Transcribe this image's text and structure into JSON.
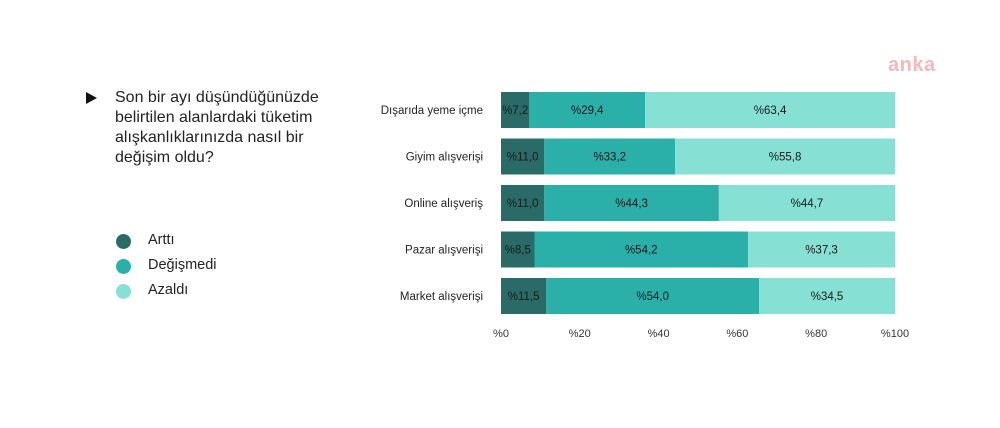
{
  "logo": "anka",
  "question": "Son bir ayı düşündüğünüzde belirtilen alanlardaki tüketim alışkanlıklarınızda nasıl bir değişim oldu?",
  "colors": {
    "artti": "#2a6b67",
    "degismedi": "#2bafa9",
    "azaldi": "#86e0d3",
    "logo": "#f3b8b8"
  },
  "chart_data": {
    "type": "bar",
    "orientation": "horizontal",
    "stacked": true,
    "categories": [
      "Dışarıda yeme içme",
      "Giyim alışverişi",
      "Online alışveriş",
      "Pazar alışverişi",
      "Market alışverişi"
    ],
    "series": [
      {
        "name": "Arttı",
        "values": [
          7.2,
          11.0,
          11.0,
          8.5,
          11.5
        ],
        "labels": [
          "%7,2",
          "%11,0",
          "%11,0",
          "%8,5",
          "%11,5"
        ]
      },
      {
        "name": "Değişmedi",
        "values": [
          29.4,
          33.2,
          44.3,
          54.2,
          54.0
        ],
        "labels": [
          "%29,4",
          "%33,2",
          "%44,3",
          "%54,2",
          "%54,0"
        ]
      },
      {
        "name": "Azaldı",
        "values": [
          63.4,
          55.8,
          44.7,
          37.3,
          34.5
        ],
        "labels": [
          "%63,4",
          "%55,8",
          "%44,7",
          "%37,3",
          "%34,5"
        ]
      }
    ],
    "xlim": [
      0,
      100
    ],
    "x_ticks": [
      0,
      20,
      40,
      60,
      80,
      100
    ],
    "x_tick_labels": [
      "%0",
      "%20",
      "%40",
      "%60",
      "%80",
      "%100"
    ],
    "legend_position": "left",
    "grid": false
  }
}
